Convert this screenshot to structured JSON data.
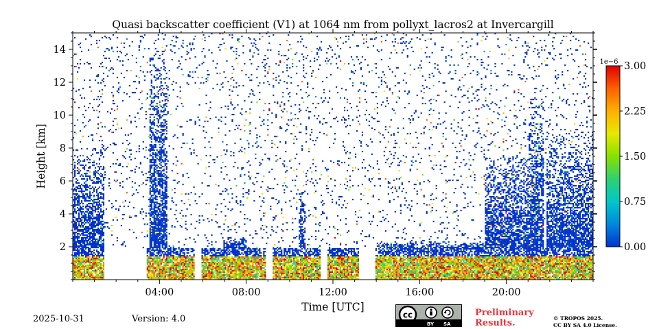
{
  "chart_data": {
    "type": "heatmap",
    "title": "Quasi backscatter coefficient (V1) at 1064 nm from pollyxt_lacros2 at Invercargill",
    "xlabel": "Time [UTC]",
    "ylabel": "Height [km]",
    "x_range_hours": [
      0,
      24
    ],
    "ylim": [
      0,
      15
    ],
    "x_ticks": [
      "04:00",
      "08:00",
      "12:00",
      "16:00",
      "20:00"
    ],
    "x_tick_hours": [
      4,
      8,
      12,
      16,
      20
    ],
    "y_ticks": [
      "2",
      "4",
      "6",
      "8",
      "10",
      "12",
      "14"
    ],
    "y_tick_values": [
      2,
      4,
      6,
      8,
      10,
      12,
      14
    ],
    "colorbar": {
      "label_exponent": "1e−6",
      "range": [
        0.0,
        3.0
      ],
      "tick_values": [
        0.0,
        0.75,
        1.5,
        2.25,
        3.0
      ],
      "tick_labels": [
        "0.00",
        "0.75",
        "1.50",
        "2.25",
        "3.00"
      ],
      "colormap": [
        "#0033cc",
        "#0088dd",
        "#00c8c8",
        "#30d070",
        "#88e000",
        "#e8e800",
        "#ffb000",
        "#ff6000",
        "#dd0000"
      ]
    },
    "features": {
      "background_noise_layer_top_km": 1.9,
      "near_ground_high_values_top_km": 1.4,
      "cloud_columns": [
        {
          "start_h": 0.0,
          "end_h": 1.4,
          "top_km": 8.0
        },
        {
          "start_h": 3.5,
          "end_h": 4.3,
          "top_km": 13.5
        },
        {
          "start_h": 6.9,
          "end_h": 8.0,
          "top_km": 2.6
        },
        {
          "start_h": 10.4,
          "end_h": 10.7,
          "top_km": 5.5
        },
        {
          "start_h": 14.0,
          "end_h": 19.0,
          "top_km": 2.3
        },
        {
          "start_h": 19.0,
          "end_h": 21.0,
          "top_km": 7.5
        },
        {
          "start_h": 21.0,
          "end_h": 21.7,
          "top_km": 11.0
        },
        {
          "start_h": 21.8,
          "end_h": 24.0,
          "top_km": 9.0
        }
      ],
      "data_gaps_h": [
        [
          1.4,
          3.4
        ],
        [
          5.6,
          5.9
        ],
        [
          8.9,
          9.2
        ],
        [
          11.4,
          11.7
        ],
        [
          13.2,
          13.9
        ]
      ]
    }
  },
  "footer": {
    "date": "2025-10-31",
    "version": "Version: 4.0",
    "preliminary_line1": "Preliminary",
    "preliminary_line2": "Results.",
    "tropos_line1": "© TROPOS 2025.",
    "tropos_line2": "CC BY SA 4.0 License.",
    "cc_by": "BY",
    "cc_sa": "SA",
    "cc_logo": "cc",
    "icon_names": [
      "cc-icon",
      "attribution-icon",
      "share-alike-icon"
    ]
  }
}
